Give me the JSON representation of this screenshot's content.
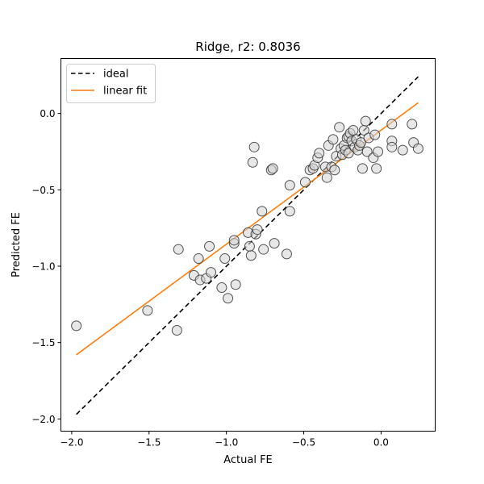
{
  "chart_data": {
    "type": "scatter",
    "title": "Ridge, r2: 0.8036",
    "xlabel": "Actual FE",
    "ylabel": "Predicted FE",
    "xlim": [
      -2.07,
      0.35
    ],
    "ylim": [
      -2.08,
      0.36
    ],
    "xticks": [
      -2.0,
      -1.5,
      -1.0,
      -0.5,
      0.0
    ],
    "xtick_labels": [
      "−2.0",
      "−1.5",
      "−1.0",
      "−0.5",
      "0.0"
    ],
    "yticks": [
      -2.0,
      -1.5,
      -1.0,
      -0.5,
      0.0
    ],
    "ytick_labels": [
      "−2.0",
      "−1.5",
      "−1.0",
      "−0.5",
      "0.0"
    ],
    "grid": false,
    "legend": {
      "placement": "top-left",
      "entries": [
        {
          "label": "ideal",
          "style": "dashed",
          "color": "#000000"
        },
        {
          "label": "linear fit",
          "style": "solid",
          "color": "#ff7f0e"
        }
      ]
    },
    "ideal_line": {
      "x": [
        -1.97,
        0.24
      ],
      "y": [
        -1.97,
        0.24
      ]
    },
    "fit_line": {
      "x": [
        -1.97,
        0.24
      ],
      "y": [
        -1.58,
        0.07
      ]
    },
    "marker": {
      "fill": "#d3d3d3",
      "edge": "#333333",
      "opacity": 0.55
    },
    "points": [
      [
        -1.97,
        -1.39
      ],
      [
        -1.51,
        -1.29
      ],
      [
        -1.32,
        -1.42
      ],
      [
        -1.31,
        -0.89
      ],
      [
        -1.21,
        -1.06
      ],
      [
        -1.18,
        -0.95
      ],
      [
        -1.17,
        -1.09
      ],
      [
        -1.13,
        -1.08
      ],
      [
        -1.11,
        -0.87
      ],
      [
        -1.1,
        -1.04
      ],
      [
        -1.03,
        -1.14
      ],
      [
        -1.01,
        -0.95
      ],
      [
        -0.99,
        -1.21
      ],
      [
        -0.95,
        -0.85
      ],
      [
        -0.95,
        -0.83
      ],
      [
        -0.94,
        -1.12
      ],
      [
        -0.86,
        -0.78
      ],
      [
        -0.85,
        -0.87
      ],
      [
        -0.84,
        -0.93
      ],
      [
        -0.83,
        -0.32
      ],
      [
        -0.82,
        -0.22
      ],
      [
        -0.81,
        -0.79
      ],
      [
        -0.8,
        -0.76
      ],
      [
        -0.77,
        -0.64
      ],
      [
        -0.76,
        -0.89
      ],
      [
        -0.71,
        -0.37
      ],
      [
        -0.7,
        -0.36
      ],
      [
        -0.69,
        -0.85
      ],
      [
        -0.61,
        -0.92
      ],
      [
        -0.59,
        -0.64
      ],
      [
        -0.59,
        -0.47
      ],
      [
        -0.49,
        -0.45
      ],
      [
        -0.46,
        -0.37
      ],
      [
        -0.44,
        -0.36
      ],
      [
        -0.43,
        -0.34
      ],
      [
        -0.41,
        -0.29
      ],
      [
        -0.4,
        -0.26
      ],
      [
        -0.36,
        -0.35
      ],
      [
        -0.35,
        -0.42
      ],
      [
        -0.34,
        -0.21
      ],
      [
        -0.32,
        -0.35
      ],
      [
        -0.31,
        -0.17
      ],
      [
        -0.3,
        -0.37
      ],
      [
        -0.29,
        -0.28
      ],
      [
        -0.27,
        -0.09
      ],
      [
        -0.26,
        -0.23
      ],
      [
        -0.25,
        -0.27
      ],
      [
        -0.24,
        -0.21
      ],
      [
        -0.23,
        -0.24
      ],
      [
        -0.22,
        -0.16
      ],
      [
        -0.21,
        -0.15
      ],
      [
        -0.21,
        -0.26
      ],
      [
        -0.2,
        -0.13
      ],
      [
        -0.19,
        -0.18
      ],
      [
        -0.18,
        -0.11
      ],
      [
        -0.17,
        -0.22
      ],
      [
        -0.16,
        -0.17
      ],
      [
        -0.15,
        -0.24
      ],
      [
        -0.14,
        -0.21
      ],
      [
        -0.13,
        -0.19
      ],
      [
        -0.12,
        -0.36
      ],
      [
        -0.11,
        -0.11
      ],
      [
        -0.1,
        -0.05
      ],
      [
        -0.09,
        -0.25
      ],
      [
        -0.08,
        -0.16
      ],
      [
        -0.05,
        -0.29
      ],
      [
        -0.04,
        -0.14
      ],
      [
        -0.03,
        -0.36
      ],
      [
        -0.02,
        -0.25
      ],
      [
        0.07,
        -0.07
      ],
      [
        0.07,
        -0.18
      ],
      [
        0.07,
        -0.22
      ],
      [
        0.14,
        -0.24
      ],
      [
        0.2,
        -0.07
      ],
      [
        0.21,
        -0.19
      ],
      [
        0.24,
        -0.23
      ]
    ]
  }
}
